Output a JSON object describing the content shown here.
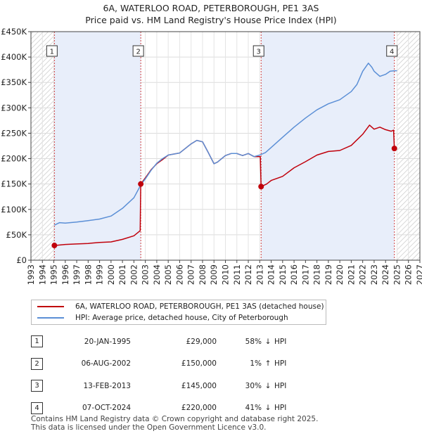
{
  "title_line1": "6A, WATERLOO ROAD, PETERBOROUGH, PE1 3AS",
  "title_line2": "Price paid vs. HM Land Registry's House Price Index (HPI)",
  "colors": {
    "property": "#c0000b",
    "hpi": "#5b8fd6",
    "band": "#e8eefa",
    "hatch": "#c8c8c8"
  },
  "chart_data": {
    "type": "line",
    "xlim": [
      1993,
      2027
    ],
    "ylim": [
      0,
      450000
    ],
    "x_ticks": [
      "1993",
      "1994",
      "1995",
      "1996",
      "1997",
      "1998",
      "1999",
      "2000",
      "2001",
      "2002",
      "2003",
      "2004",
      "2005",
      "2006",
      "2007",
      "2008",
      "2009",
      "2010",
      "2011",
      "2012",
      "2013",
      "2014",
      "2015",
      "2016",
      "2017",
      "2018",
      "2019",
      "2020",
      "2021",
      "2022",
      "2023",
      "2024",
      "2025",
      "2026",
      "2027"
    ],
    "y_ticks": [
      {
        "value": 0,
        "label": "£0"
      },
      {
        "value": 50000,
        "label": "£50K"
      },
      {
        "value": 100000,
        "label": "£100K"
      },
      {
        "value": 150000,
        "label": "£150K"
      },
      {
        "value": 200000,
        "label": "£200K"
      },
      {
        "value": 250000,
        "label": "£250K"
      },
      {
        "value": 300000,
        "label": "£300K"
      },
      {
        "value": 350000,
        "label": "£350K"
      },
      {
        "value": 400000,
        "label": "£400K"
      },
      {
        "value": 450000,
        "label": "£450K"
      }
    ],
    "data_range": [
      1995.05,
      2025.0
    ],
    "shaded_spans": [
      [
        1995.05,
        2002.6
      ],
      [
        2013.12,
        2024.77
      ]
    ],
    "series": [
      {
        "name": "6A, WATERLOO ROAD, PETERBOROUGH, PE1 3AS (detached house)",
        "key": "property",
        "x": [
          1995.05,
          1996,
          1997,
          1998,
          1999,
          2000,
          2001,
          2002.0,
          2002.55,
          2002.6,
          2003,
          2003.5,
          2004,
          2004.5,
          2005,
          2006,
          2007,
          2007.5,
          2008,
          2008.5,
          2009,
          2009.3,
          2010,
          2010.5,
          2011,
          2011.5,
          2012,
          2012.5,
          2013.05,
          2013.12,
          2013.6,
          2014,
          2015,
          2016,
          2017,
          2018,
          2019,
          2020,
          2021,
          2022,
          2022.6,
          2023,
          2023.5,
          2024,
          2024.5,
          2024.7,
          2024.77
        ],
        "values": [
          29000,
          31000,
          32000,
          33000,
          35000,
          36000,
          41000,
          48000,
          58000,
          150000,
          162000,
          178000,
          190000,
          198000,
          207000,
          211000,
          229000,
          236000,
          233000,
          212000,
          190000,
          193000,
          206000,
          210000,
          210000,
          206000,
          210000,
          204000,
          204000,
          145000,
          150000,
          157000,
          165000,
          182000,
          194000,
          207000,
          214000,
          216000,
          226000,
          248000,
          266000,
          258000,
          262000,
          257000,
          254000,
          256000,
          220000
        ]
      },
      {
        "name": "HPI: Average price, detached house, City of Peterborough",
        "key": "hpi",
        "x": [
          1995.05,
          1995.5,
          1996,
          1997,
          1998,
          1999,
          2000,
          2001,
          2002,
          2002.6,
          2003,
          2003.5,
          2004,
          2004.5,
          2005,
          2006,
          2007,
          2007.5,
          2008,
          2008.5,
          2009,
          2009.3,
          2010,
          2010.5,
          2011,
          2011.5,
          2012,
          2012.5,
          2013,
          2013.5,
          2014,
          2015,
          2016,
          2017,
          2018,
          2019,
          2020,
          2021,
          2021.5,
          2022,
          2022.5,
          2022.8,
          2023,
          2023.5,
          2024,
          2024.4,
          2024.77,
          2025.0
        ],
        "values": [
          69000,
          74000,
          73000,
          75000,
          78000,
          81000,
          87000,
          102000,
          123000,
          148000,
          160000,
          177000,
          191000,
          200000,
          207000,
          211000,
          229000,
          236000,
          233000,
          212000,
          190000,
          193000,
          206000,
          210000,
          210000,
          206000,
          210000,
          204000,
          207000,
          212000,
          222000,
          242000,
          262000,
          280000,
          296000,
          308000,
          316000,
          332000,
          346000,
          372000,
          388000,
          380000,
          372000,
          362000,
          366000,
          372000,
          373000,
          373000
        ]
      }
    ],
    "sales": [
      {
        "num": "1",
        "x": 1995.05,
        "price": 29000
      },
      {
        "num": "2",
        "x": 2002.6,
        "price": 150000
      },
      {
        "num": "3",
        "x": 2013.12,
        "price": 145000
      },
      {
        "num": "4",
        "x": 2024.77,
        "price": 220000
      }
    ]
  },
  "legend": {
    "property_label": "6A, WATERLOO ROAD, PETERBOROUGH, PE1 3AS (detached house)",
    "hpi_label": "HPI: Average price, detached house, City of Peterborough"
  },
  "sales_table": [
    {
      "num": "1",
      "date": "20-JAN-1995",
      "price": "£29,000",
      "pct": "58%",
      "arrow": "↓",
      "hpi": "HPI"
    },
    {
      "num": "2",
      "date": "06-AUG-2002",
      "price": "£150,000",
      "pct": "1%",
      "arrow": "↑",
      "hpi": "HPI"
    },
    {
      "num": "3",
      "date": "13-FEB-2013",
      "price": "£145,000",
      "pct": "30%",
      "arrow": "↓",
      "hpi": "HPI"
    },
    {
      "num": "4",
      "date": "07-OCT-2024",
      "price": "£220,000",
      "pct": "41%",
      "arrow": "↓",
      "hpi": "HPI"
    }
  ],
  "footer_line1": "Contains HM Land Registry data © Crown copyright and database right 2025.",
  "footer_line2": "This data is licensed under the Open Government Licence v3.0."
}
